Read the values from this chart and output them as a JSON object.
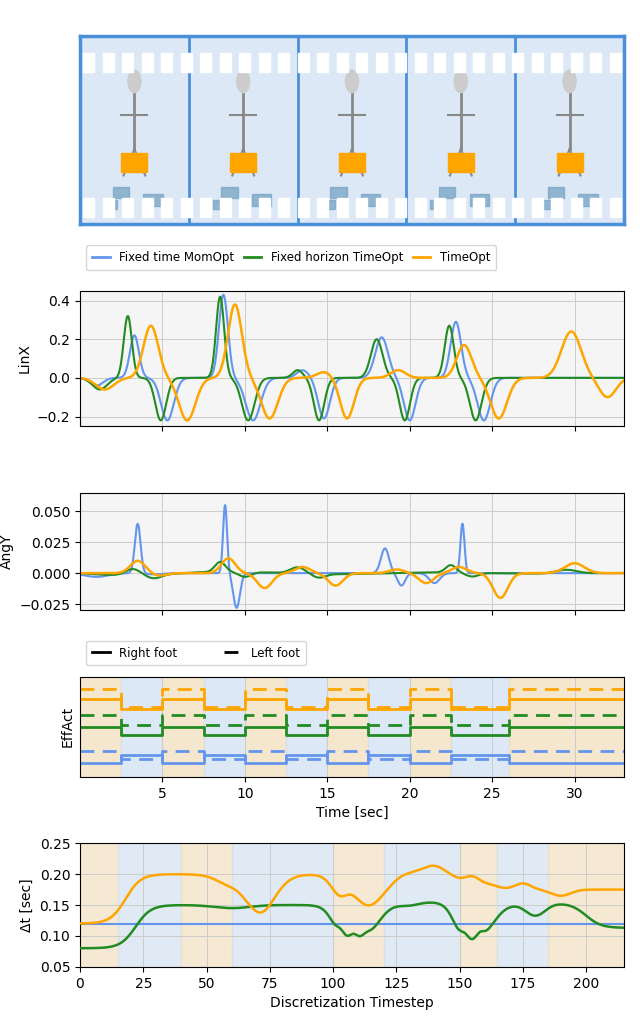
{
  "colors": {
    "blue": "#6495ED",
    "green": "#228B22",
    "orange": "#FFA500",
    "bg_blue": "#cce0f5",
    "bg_orange": "#f5deb3",
    "filmstrip_bg": "#dce8f5",
    "filmstrip_border": "#4a90d9"
  },
  "legend_labels": [
    "Fixed time MomOpt",
    "Fixed horizon TimeOpt",
    "TimeOpt"
  ],
  "subplot1_ylabel": "LinX",
  "subplot1_ylim": [
    -0.25,
    0.45
  ],
  "subplot1_yticks": [
    -0.2,
    0.0,
    0.2,
    0.4
  ],
  "subplot2_ylabel": "AngY",
  "subplot2_ylim": [
    -0.03,
    0.065
  ],
  "subplot2_yticks": [
    -0.025,
    0.0,
    0.025,
    0.05
  ],
  "subplot3_ylabel": "EffAct",
  "subplot4_ylabel": "Δt [sec]",
  "subplot4_xlabel": "Discretization Timestep",
  "subplot4_ylim": [
    0.05,
    0.25
  ],
  "subplot4_yticks": [
    0.05,
    0.1,
    0.15,
    0.2,
    0.25
  ],
  "time_xlim": [
    0,
    33
  ],
  "time_xticks": [
    5,
    10,
    15,
    20,
    25,
    30
  ],
  "disc_xlim": [
    0,
    215
  ],
  "disc_xticks": [
    0,
    25,
    50,
    75,
    100,
    125,
    150,
    175,
    200
  ]
}
